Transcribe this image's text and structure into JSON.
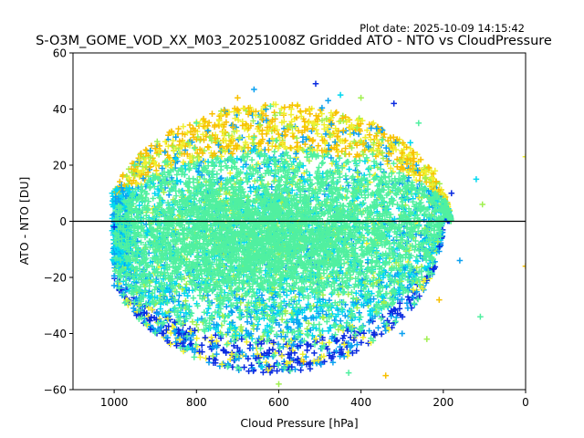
{
  "plot_date": "Plot date: 2025-10-09 14:15:42",
  "chart_data": {
    "type": "scatter",
    "title": "S-O3M_GOME_VOD_XX_M03_20251008Z Gridded ATO - NTO vs CloudPressure",
    "xlabel": "Cloud Pressure [hPa]",
    "ylabel": "ATO - NTO [DU]",
    "xlim": [
      1100,
      0
    ],
    "ylim": [
      -60,
      60
    ],
    "x_ticks": [
      1000,
      800,
      600,
      400,
      200,
      0
    ],
    "y_ticks": [
      -60,
      -40,
      -20,
      0,
      20,
      40,
      60
    ],
    "x_tick_labels": [
      "1000",
      "800",
      "600",
      "400",
      "200",
      "0"
    ],
    "y_tick_labels": [
      "−60",
      "−40",
      "−20",
      "0",
      "20",
      "40",
      "60"
    ],
    "reference_line_y": 0,
    "marker": "plus",
    "colors": [
      "#0a2be0",
      "#0aa0f0",
      "#00d8f0",
      "#50f0a0",
      "#a0f050",
      "#f0f030",
      "#f8c000"
    ],
    "cloud": {
      "x_range": [
        1000,
        100
      ],
      "y_range": [
        -60,
        50
      ],
      "core_center": [
        630,
        -5
      ]
    },
    "points_sample": [
      [
        1000,
        -2
      ],
      [
        990,
        8
      ],
      [
        980,
        -12
      ],
      [
        950,
        20
      ],
      [
        940,
        -30
      ],
      [
        920,
        -37
      ],
      [
        900,
        26
      ],
      [
        880,
        -40
      ],
      [
        850,
        30
      ],
      [
        820,
        -45
      ],
      [
        800,
        35
      ],
      [
        760,
        -48
      ],
      [
        740,
        38
      ],
      [
        700,
        44
      ],
      [
        690,
        -42
      ],
      [
        660,
        47
      ],
      [
        640,
        -52
      ],
      [
        620,
        41
      ],
      [
        600,
        -58
      ],
      [
        570,
        38
      ],
      [
        540,
        -50
      ],
      [
        510,
        49
      ],
      [
        480,
        43
      ],
      [
        450,
        45
      ],
      [
        430,
        -54
      ],
      [
        400,
        44
      ],
      [
        370,
        35
      ],
      [
        340,
        -55
      ],
      [
        320,
        42
      ],
      [
        300,
        -40
      ],
      [
        280,
        28
      ],
      [
        260,
        35
      ],
      [
        240,
        -42
      ],
      [
        220,
        18
      ],
      [
        210,
        -28
      ],
      [
        180,
        10
      ],
      [
        160,
        -14
      ],
      [
        120,
        15
      ],
      [
        110,
        -34
      ],
      [
        105,
        6
      ],
      [
        0,
        23
      ],
      [
        0,
        -16
      ]
    ]
  }
}
